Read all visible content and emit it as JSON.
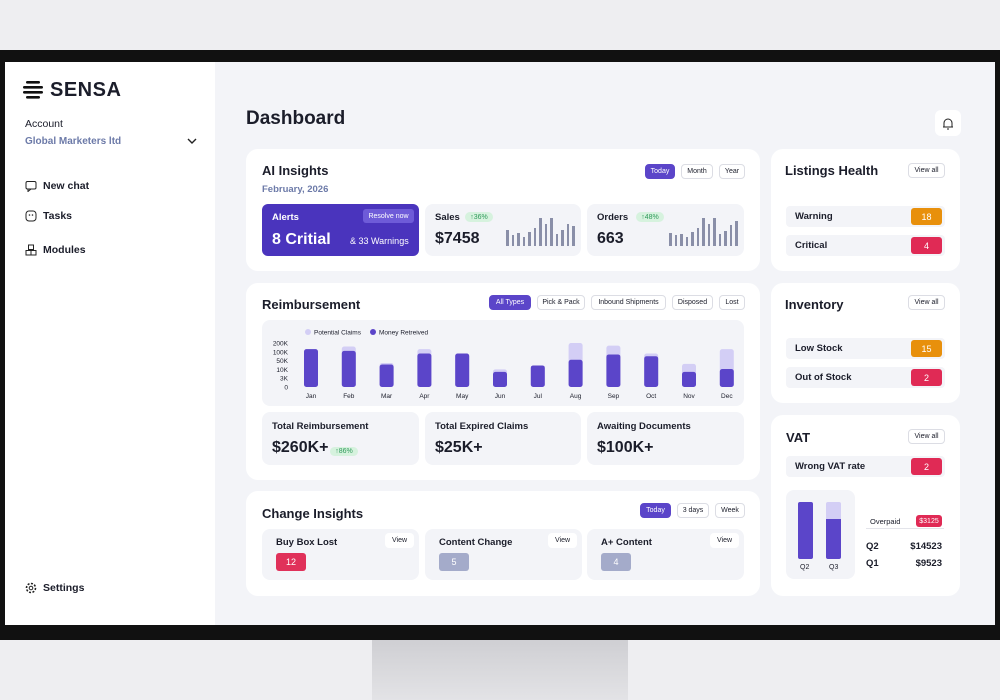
{
  "brand": "SENSA",
  "sidebar": {
    "account_label": "Account",
    "account_name": "Global Marketers ltd",
    "nav": [
      "New chat",
      "Tasks",
      "Modules"
    ],
    "settings": "Settings"
  },
  "header": {
    "title": "Dashboard"
  },
  "ai_insights": {
    "title": "AI Insights",
    "date": "February, 2026",
    "filters": [
      "Today",
      "Month",
      "Year"
    ],
    "alerts": {
      "label": "Alerts",
      "action": "Resolve now",
      "value": "8 Critial",
      "secondary": "& 33 Warnings"
    },
    "sales": {
      "label": "Sales",
      "change": "↑36%",
      "value": "$7458"
    },
    "orders": {
      "label": "Orders",
      "change": "↑48%",
      "value": "663"
    }
  },
  "reimbursement": {
    "title": "Reimbursement",
    "filters": [
      "All Types",
      "Pick & Pack",
      "Inbound Shipments",
      "Disposed",
      "Lost"
    ],
    "chart": {
      "type": "bar",
      "categories": [
        "Jan",
        "Feb",
        "Mar",
        "Apr",
        "May",
        "Jun",
        "Jul",
        "Aug",
        "Sep",
        "Oct",
        "Nov",
        "Dec"
      ],
      "series": [
        {
          "name": "Potential Claims",
          "color": "#d3cef5",
          "values": [
            130000,
            160000,
            39000,
            130000,
            90000,
            10000,
            28000,
            200000,
            170000,
            90000,
            35000,
            130000
          ]
        },
        {
          "name": "Money Retreived",
          "color": "#5b45c9",
          "values": [
            130000,
            110000,
            32000,
            90000,
            90000,
            8000,
            28000,
            55000,
            85000,
            75000,
            8000,
            12000
          ]
        }
      ],
      "ylim": [
        0,
        200000
      ],
      "yticks": [
        0,
        {
          "value": 3000,
          "label": "3K"
        },
        {
          "value": 10000,
          "label": "10K"
        },
        {
          "value": 50000,
          "label": "50K"
        },
        {
          "value": 100000,
          "label": "100K"
        },
        {
          "value": 200000,
          "label": "200K"
        }
      ]
    },
    "stats": [
      {
        "label": "Total Reimbursement",
        "value": "$260K+",
        "change": "↑86%"
      },
      {
        "label": "Total Expired Claims",
        "value": "$25K+"
      },
      {
        "label": "Awaiting Documents",
        "value": "$100K+"
      }
    ]
  },
  "change_insights": {
    "title": "Change Insights",
    "filters": [
      "Today",
      "3 days",
      "Week"
    ],
    "items": [
      {
        "label": "Buy Box Lost",
        "action": "View",
        "count": 12
      },
      {
        "label": "Content Change",
        "action": "View",
        "count": 5
      },
      {
        "label": "A+ Content",
        "action": "View",
        "count": 4
      }
    ]
  },
  "listings_health": {
    "title": "Listings Health",
    "action": "View all",
    "rows": [
      {
        "label": "Warning",
        "value": 18
      },
      {
        "label": "Critical",
        "value": 4
      }
    ]
  },
  "inventory": {
    "title": "Inventory",
    "action": "View all",
    "rows": [
      {
        "label": "Low Stock",
        "value": 15
      },
      {
        "label": "Out of Stock",
        "value": 2
      }
    ]
  },
  "vat": {
    "title": "VAT",
    "action": "View all",
    "rows": [
      {
        "label": "Wrong VAT rate",
        "value": 2
      }
    ],
    "chart_labels": [
      "Q2",
      "Q3"
    ],
    "overpaid_label": "Overpaid",
    "overpaid": "$3125",
    "quarters": [
      {
        "label": "Q2",
        "value": "$14523"
      },
      {
        "label": "Q1",
        "value": "$9523"
      }
    ]
  }
}
